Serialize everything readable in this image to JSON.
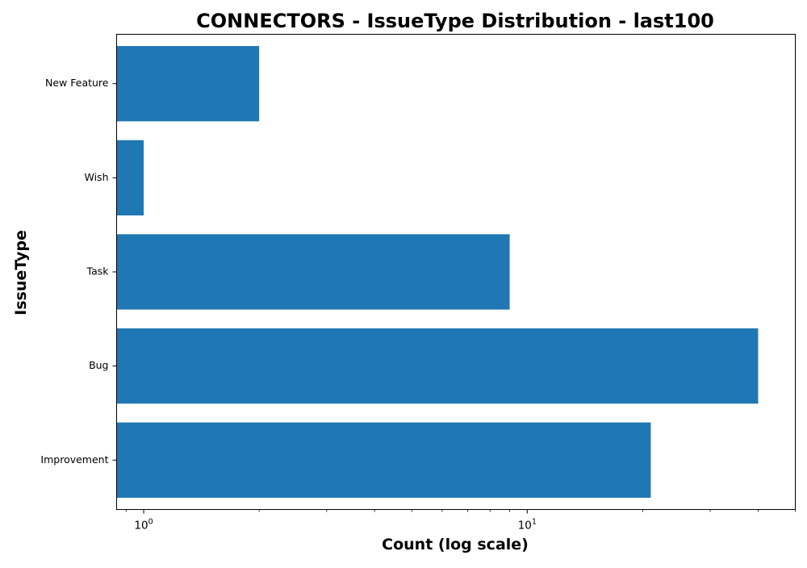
{
  "chart_data": {
    "type": "bar",
    "orientation": "horizontal",
    "title": "CONNECTORS - IssueType Distribution - last100",
    "xlabel": "Count (log scale)",
    "ylabel": "IssueType",
    "x_scale": "log",
    "xlim": [
      0.85,
      50
    ],
    "x_ticks": [
      {
        "value": 1,
        "base": "10",
        "exp": "0"
      },
      {
        "value": 10,
        "base": "10",
        "exp": "1"
      }
    ],
    "categories": [
      "Improvement",
      "Bug",
      "Task",
      "Wish",
      "New Feature"
    ],
    "values": [
      21,
      40,
      9,
      1,
      2
    ],
    "grid": false,
    "bar_color": "#1f77b4"
  }
}
